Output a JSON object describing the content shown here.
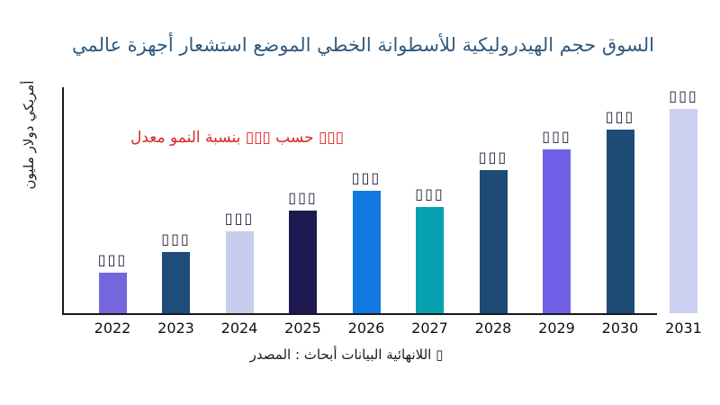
{
  "title": {
    "text": "عالمي أجهزة استشعار الموضع الخطي للأسطوانة الهيدروليكية حجم السوق",
    "color": "#315A7D"
  },
  "annotation": {
    "text": "معدل النمو بنسبة ▯▯▯ حسب ▯▯▯",
    "color": "#DF2323"
  },
  "source": {
    "text": "المصدر : أبحاث البيانات اللانهائية ▯"
  },
  "chart_data": {
    "type": "bar",
    "title": "عالمي أجهزة استشعار الموضع الخطي للأسطوانة الهيدروليكية حجم السوق",
    "ylabel": "مليون دولار أمريكي",
    "xlabel": "",
    "categories": [
      "2022",
      "2023",
      "2024",
      "2025",
      "2026",
      "2027",
      "2028",
      "2029",
      "2030",
      "2031"
    ],
    "values_relative": [
      20,
      30,
      40,
      50,
      60,
      52,
      70,
      80,
      90,
      100
    ],
    "values_note": "y-axis has no numeric tick labels; values estimated from bar heights with 2031 = 100",
    "value_labels": [
      "▯▯▯",
      "▯▯▯",
      "▯▯▯",
      "▯▯▯",
      "▯▯▯",
      "▯▯▯",
      "▯▯▯",
      "▯▯▯",
      "▯▯▯",
      "▯▯▯"
    ],
    "bar_colors": [
      "#7566DD",
      "#1F4C78",
      "#C8CCEE",
      "#1F1951",
      "#1278E2",
      "#08A1B2",
      "#1E4A76",
      "#7161E8",
      "#1F4B77",
      "#CCD0F0"
    ],
    "axis_color": "#1a1a1a",
    "grid": false,
    "legend": false
  }
}
